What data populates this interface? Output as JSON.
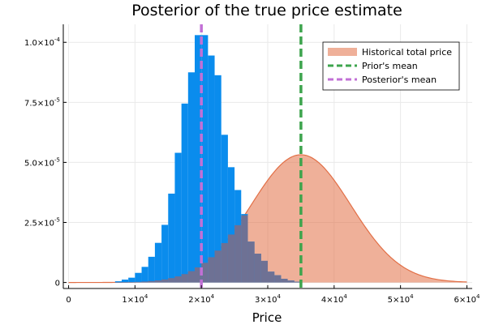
{
  "chart_data": {
    "type": "histogram",
    "title": "Posterior of the true price estimate",
    "xlabel": "Price",
    "ylabel": "",
    "xlim": [
      -800,
      60800
    ],
    "ylim": [
      -2.5e-06,
      0.0001075
    ],
    "grid": true,
    "legend_position": "top-right",
    "x_ticks": [
      {
        "value": 0,
        "mantissa": "0",
        "exponent": ""
      },
      {
        "value": 10000,
        "mantissa": "1×10",
        "exponent": "4"
      },
      {
        "value": 20000,
        "mantissa": "2×10",
        "exponent": "4"
      },
      {
        "value": 30000,
        "mantissa": "3×10",
        "exponent": "4"
      },
      {
        "value": 40000,
        "mantissa": "4×10",
        "exponent": "4"
      },
      {
        "value": 50000,
        "mantissa": "5×10",
        "exponent": "4"
      },
      {
        "value": 60000,
        "mantissa": "6×10",
        "exponent": "4"
      }
    ],
    "y_ticks": [
      {
        "value": 0,
        "mantissa": "0",
        "exponent": ""
      },
      {
        "value": 2.5e-05,
        "mantissa": "2.5×10",
        "exponent": "-5"
      },
      {
        "value": 5e-05,
        "mantissa": "5.0×10",
        "exponent": "-5"
      },
      {
        "value": 7.5e-05,
        "mantissa": "7.5×10",
        "exponent": "-5"
      },
      {
        "value": 0.0001,
        "mantissa": "1.0×10",
        "exponent": "-4"
      }
    ],
    "series": [
      {
        "name": "",
        "type": "histogram",
        "color": "#0a8ced",
        "bin_width": 1000,
        "bin_starts": [
          7000,
          8000,
          9000,
          10000,
          11000,
          12000,
          13000,
          14000,
          15000,
          16000,
          17000,
          18000,
          19000,
          20000,
          21000,
          22000,
          23000,
          24000,
          25000,
          26000,
          27000,
          28000,
          29000,
          30000,
          31000,
          32000,
          33000,
          34000
        ],
        "values": [
          5e-07,
          1.2e-06,
          2e-06,
          4e-06,
          6.5e-06,
          1.07e-05,
          1.65e-05,
          2.4e-05,
          3.7e-05,
          5.4e-05,
          7.45e-05,
          8.75e-05,
          0.000103,
          0.000103,
          9.45e-05,
          8.63e-05,
          6.15e-05,
          4.8e-05,
          3.85e-05,
          2.85e-05,
          1.7e-05,
          1.2e-05,
          9e-06,
          4.5e-06,
          3e-06,
          1.5e-06,
          8e-07,
          3e-07
        ]
      },
      {
        "name": "Historical total price",
        "type": "area",
        "color": "#e26f46",
        "fill_opacity": 0.55,
        "mean": 35000,
        "std": 7500,
        "x_range": [
          0,
          60000
        ]
      },
      {
        "name": "Prior's mean",
        "type": "vline",
        "color": "#3da44d",
        "x": 35000
      },
      {
        "name": "Posterior's mean",
        "type": "vline",
        "color": "#c270d6",
        "x": 20000
      }
    ]
  }
}
